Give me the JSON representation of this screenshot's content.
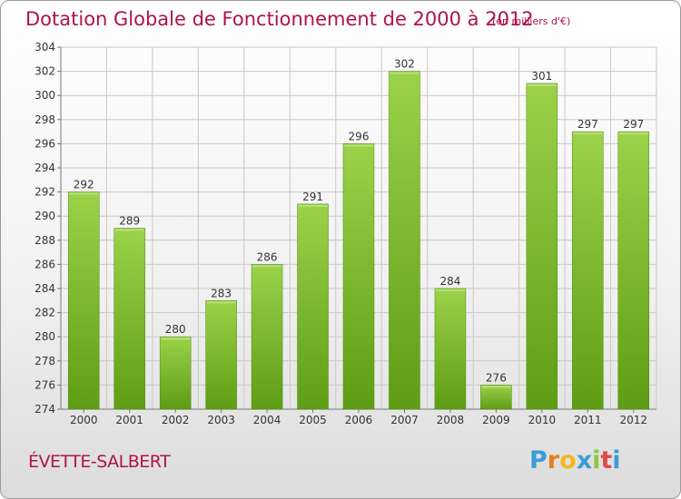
{
  "title": "Dotation Globale de Fonctionnement de 2000 à 2012",
  "unit_note": "(en milliers d'€)",
  "city": "ÉVETTE-SALBERT",
  "logo_text": "Proxiti",
  "colors": {
    "title": "#b0134a",
    "bar_top": "#9bd24a",
    "bar_bottom": "#5e9d14",
    "grid": "#c8c8c8"
  },
  "chart_data": {
    "type": "bar",
    "title": "Dotation Globale de Fonctionnement de 2000 à 2012",
    "subtitle": "(en milliers d'€)",
    "xlabel": "",
    "ylabel": "",
    "categories": [
      "2000",
      "2001",
      "2002",
      "2003",
      "2004",
      "2005",
      "2006",
      "2007",
      "2008",
      "2009",
      "2010",
      "2011",
      "2012"
    ],
    "values": [
      292,
      289,
      280,
      283,
      286,
      291,
      296,
      302,
      284,
      276,
      301,
      297,
      297
    ],
    "ylim": [
      274,
      304
    ],
    "yticks": [
      274,
      276,
      278,
      280,
      282,
      284,
      286,
      288,
      290,
      292,
      294,
      296,
      298,
      300,
      302,
      304
    ],
    "grid": true,
    "legend": "none"
  }
}
